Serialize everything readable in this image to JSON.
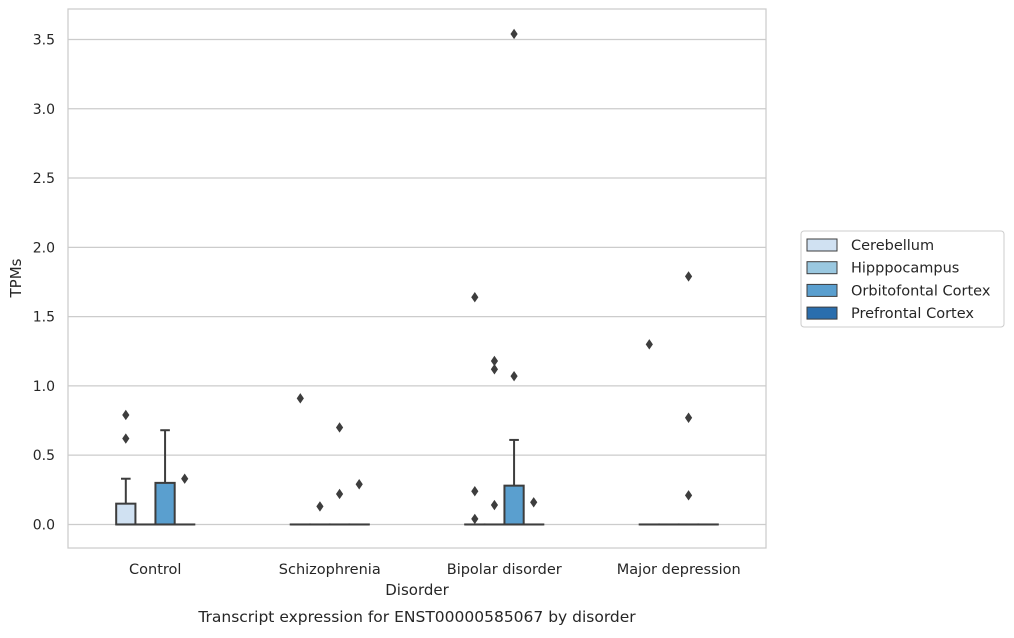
{
  "chart_data": {
    "type": "box",
    "title": "",
    "caption": "Transcript expression for ENST00000585067 by disorder",
    "xlabel": "Disorder",
    "ylabel": "TPMs",
    "categories": [
      "Control",
      "Schizophrenia",
      "Bipolar disorder",
      "Major depression"
    ],
    "ylim": [
      -0.17,
      3.72
    ],
    "yticks": [
      0.0,
      0.5,
      1.0,
      1.5,
      2.0,
      2.5,
      3.0,
      3.5
    ],
    "ytick_labels": [
      "0.0",
      "0.5",
      "1.0",
      "1.5",
      "2.0",
      "2.5",
      "3.0",
      "3.5"
    ],
    "grid": "horizontal",
    "legend_position": "center-right outside",
    "series": [
      {
        "name": "Cerebellum",
        "color": "#d0e1f2",
        "boxes": [
          {
            "category": "Control",
            "q1": 0.0,
            "median": 0.0,
            "q3": 0.15,
            "whisker_low": 0.0,
            "whisker_high": 0.33,
            "outliers": [
              0.62,
              0.79
            ]
          },
          {
            "category": "Schizophrenia",
            "q1": 0.0,
            "median": 0.0,
            "q3": 0.0,
            "whisker_low": 0.0,
            "whisker_high": 0.0,
            "outliers": [
              0.91
            ]
          },
          {
            "category": "Bipolar disorder",
            "q1": 0.0,
            "median": 0.0,
            "q3": 0.0,
            "whisker_low": 0.0,
            "whisker_high": 0.0,
            "outliers": [
              0.04,
              0.24,
              1.64
            ]
          },
          {
            "category": "Major depression",
            "q1": 0.0,
            "median": 0.0,
            "q3": 0.0,
            "whisker_low": 0.0,
            "whisker_high": 0.0,
            "outliers": [
              1.3
            ]
          }
        ]
      },
      {
        "name": "Hipppocampus",
        "color": "#9ac8e0",
        "boxes": [
          {
            "category": "Control",
            "q1": 0.0,
            "median": 0.0,
            "q3": 0.0,
            "whisker_low": 0.0,
            "whisker_high": 0.0,
            "outliers": []
          },
          {
            "category": "Schizophrenia",
            "q1": 0.0,
            "median": 0.0,
            "q3": 0.0,
            "whisker_low": 0.0,
            "whisker_high": 0.0,
            "outliers": [
              0.13
            ]
          },
          {
            "category": "Bipolar disorder",
            "q1": 0.0,
            "median": 0.0,
            "q3": 0.0,
            "whisker_low": 0.0,
            "whisker_high": 0.0,
            "outliers": [
              0.14,
              1.12,
              1.18
            ]
          },
          {
            "category": "Major depression",
            "q1": 0.0,
            "median": 0.0,
            "q3": 0.0,
            "whisker_low": 0.0,
            "whisker_high": 0.0,
            "outliers": []
          }
        ]
      },
      {
        "name": "Orbitofontal Cortex",
        "color": "#5a9fcf",
        "boxes": [
          {
            "category": "Control",
            "q1": 0.0,
            "median": 0.0,
            "q3": 0.3,
            "whisker_low": 0.0,
            "whisker_high": 0.68,
            "outliers": []
          },
          {
            "category": "Schizophrenia",
            "q1": 0.0,
            "median": 0.0,
            "q3": 0.0,
            "whisker_low": 0.0,
            "whisker_high": 0.0,
            "outliers": [
              0.22,
              0.7
            ]
          },
          {
            "category": "Bipolar disorder",
            "q1": 0.0,
            "median": 0.0,
            "q3": 0.28,
            "whisker_low": 0.0,
            "whisker_high": 0.61,
            "outliers": [
              1.07,
              3.54
            ]
          },
          {
            "category": "Major depression",
            "q1": 0.0,
            "median": 0.0,
            "q3": 0.0,
            "whisker_low": 0.0,
            "whisker_high": 0.0,
            "outliers": [
              0.21,
              0.77,
              1.79
            ]
          }
        ]
      },
      {
        "name": "Prefrontal Cortex",
        "color": "#2a6ead",
        "boxes": [
          {
            "category": "Control",
            "q1": 0.0,
            "median": 0.0,
            "q3": 0.0,
            "whisker_low": 0.0,
            "whisker_high": 0.0,
            "outliers": [
              0.33
            ]
          },
          {
            "category": "Schizophrenia",
            "q1": 0.0,
            "median": 0.0,
            "q3": 0.0,
            "whisker_low": 0.0,
            "whisker_high": 0.0,
            "outliers": [
              0.29
            ]
          },
          {
            "category": "Bipolar disorder",
            "q1": 0.0,
            "median": 0.0,
            "q3": 0.0,
            "whisker_low": 0.0,
            "whisker_high": 0.0,
            "outliers": [
              0.16
            ]
          },
          {
            "category": "Major depression",
            "q1": 0.0,
            "median": 0.0,
            "q3": 0.0,
            "whisker_low": 0.0,
            "whisker_high": 0.0,
            "outliers": []
          }
        ]
      }
    ]
  }
}
